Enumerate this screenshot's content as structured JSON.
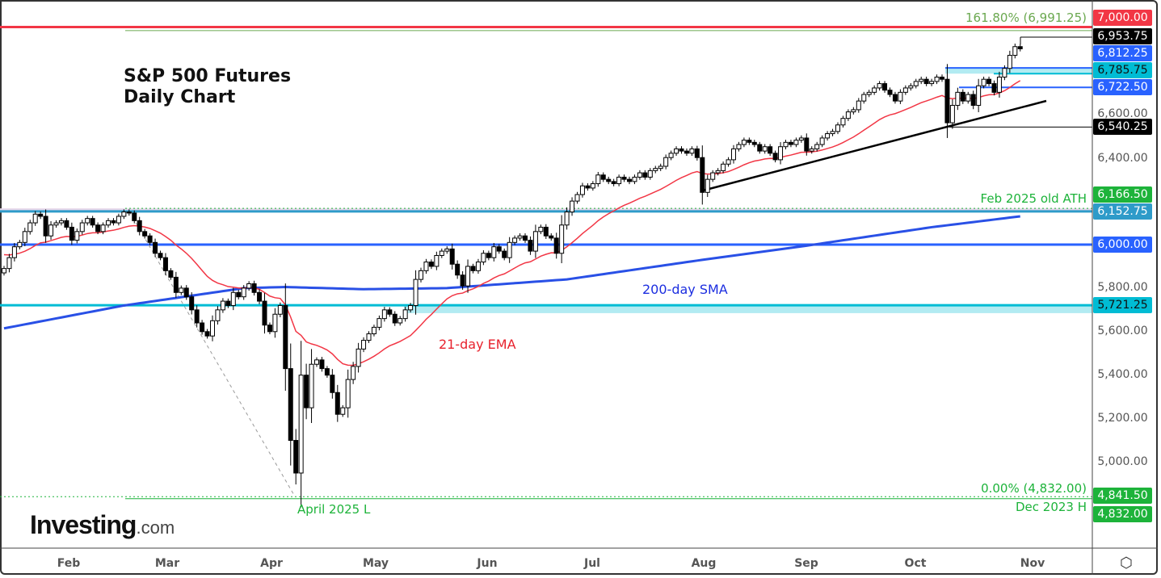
{
  "chart_data": {
    "type": "candlestick",
    "title": "S&P 500 Futures",
    "subtitle": "Daily Chart",
    "x_ticks": [
      "Feb",
      "Mar",
      "Apr",
      "May",
      "Jun",
      "Jul",
      "Aug",
      "Sep",
      "Oct",
      "Nov"
    ],
    "y_ticks": [
      "6,600.00",
      "6,400.00",
      "6,000.00",
      "5,800.00",
      "5,600.00",
      "5,400.00",
      "5,200.00",
      "5,000.00"
    ],
    "ylim": [
      4750,
      7080
    ],
    "grid": false,
    "close": [
      5890,
      5940,
      5990,
      6010,
      6060,
      6100,
      6140,
      6130,
      6040,
      6090,
      6100,
      6110,
      6080,
      6020,
      6060,
      6100,
      6120,
      6090,
      6060,
      6090,
      6110,
      6100,
      6130,
      6150,
      6145,
      6110,
      6060,
      6040,
      6010,
      5960,
      5940,
      5880,
      5850,
      5780,
      5800,
      5760,
      5700,
      5640,
      5600,
      5580,
      5650,
      5700,
      5740,
      5720,
      5780,
      5760,
      5800,
      5820,
      5780,
      5740,
      5630,
      5600,
      5680,
      5720,
      5430,
      5100,
      4950,
      5400,
      5250,
      5450,
      5470,
      5430,
      5400,
      5320,
      5220,
      5250,
      5380,
      5440,
      5520,
      5560,
      5590,
      5620,
      5660,
      5700,
      5680,
      5640,
      5660,
      5700,
      5720,
      5840,
      5880,
      5920,
      5900,
      5950,
      5970,
      5980,
      5910,
      5860,
      5810,
      5900,
      5880,
      5920,
      5960,
      5940,
      5990,
      5970,
      5940,
      6010,
      6030,
      6040,
      6020,
      5970,
      6060,
      6080,
      6040,
      6030,
      5960,
      6090,
      6150,
      6200,
      6230,
      6270,
      6260,
      6280,
      6320,
      6300,
      6290,
      6280,
      6310,
      6300,
      6290,
      6310,
      6330,
      6310,
      6340,
      6350,
      6360,
      6400,
      6420,
      6440,
      6430,
      6420,
      6440,
      6400,
      6240,
      6300,
      6330,
      6340,
      6370,
      6390,
      6440,
      6460,
      6480,
      6470,
      6460,
      6430,
      6450,
      6420,
      6390,
      6450,
      6470,
      6460,
      6480,
      6490,
      6430,
      6440,
      6460,
      6490,
      6510,
      6520,
      6550,
      6580,
      6610,
      6620,
      6660,
      6690,
      6700,
      6720,
      6740,
      6710,
      6690,
      6660,
      6700,
      6720,
      6730,
      6750,
      6760,
      6740,
      6750,
      6770,
      6760,
      6560,
      6640,
      6700,
      6660,
      6690,
      6640,
      6730,
      6760,
      6740,
      6700,
      6770,
      6810,
      6870,
      6910,
      6900
    ],
    "sma200": [
      [
        0,
        5615
      ],
      [
        23,
        5720
      ],
      [
        46,
        5800
      ],
      [
        54,
        5805
      ],
      [
        69,
        5795
      ],
      [
        85,
        5800
      ],
      [
        108,
        5840
      ],
      [
        134,
        5930
      ],
      [
        154,
        5995
      ],
      [
        178,
        6080
      ],
      [
        195,
        6130
      ]
    ],
    "series_labels": {
      "sma": "200-day SMA",
      "ema": "21-day EMA"
    },
    "annotations": {
      "fib_high": "161.80% (6,991.25)",
      "fib_low": "0.00% (4,832.00)",
      "old_ath": "Feb 2025 old ATH",
      "april_low": "April 2025 L",
      "dec_high": "Dec 2023 H"
    },
    "levels": [
      {
        "value": 7000.0,
        "label": "7,000.00",
        "color": "#f23645"
      },
      {
        "value": 6953.75,
        "label": "6,953.75",
        "color": "#000000"
      },
      {
        "value": 6812.25,
        "label": "6,812.25",
        "color": "#2962ff"
      },
      {
        "value": 6785.75,
        "label": "6,785.75",
        "color": "#00bcd4"
      },
      {
        "value": 6722.5,
        "label": "6,722.50",
        "color": "#2962ff"
      },
      {
        "value": 6540.25,
        "label": "6,540.25",
        "color": "#000000"
      },
      {
        "value": 6166.5,
        "label": "6,166.50",
        "color": "#1db33a"
      },
      {
        "value": 6152.75,
        "label": "6,152.75",
        "color": "#2e9bc9"
      },
      {
        "value": 6000.0,
        "label": "6,000.00",
        "color": "#2962ff"
      },
      {
        "value": 5721.25,
        "label": "5,721.25",
        "color": "#00bcd4"
      },
      {
        "value": 4841.5,
        "label": "4,841.50",
        "color": "#1db33a"
      },
      {
        "value": 4832.0,
        "label": "4,832.00",
        "color": "#1db33a"
      }
    ],
    "colors": {
      "ema": "#f23645",
      "sma": "#2950e6",
      "up": "#ffffff",
      "down": "#000000"
    }
  },
  "logo": {
    "main": "Investing",
    "suffix": ".com"
  },
  "settings_icon": "settings-hexagon-icon"
}
